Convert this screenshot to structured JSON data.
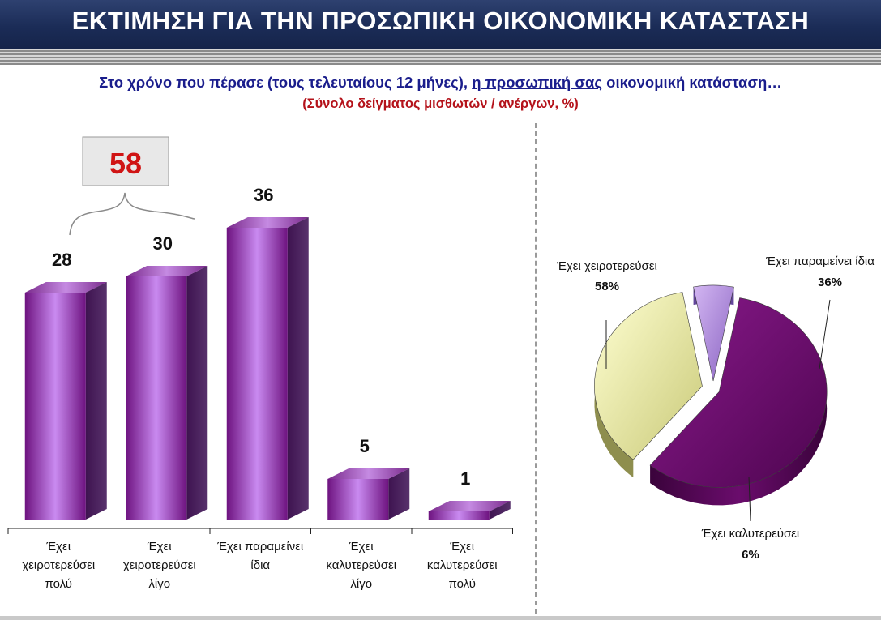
{
  "header": {
    "title": "ΕΚΤΙΜΗΣΗ ΓΙΑ ΤΗΝ ΠΡΟΣΩΠΙΚΗ ΟΙΚΟΝΟΜΙΚΗ ΚΑΤΑΣΤΑΣΗ"
  },
  "subtitle": {
    "part1": "Στο χρόνο που πέρασε (τους τελευταίους 12 μήνες), ",
    "part2": "η προσωπική σας",
    "part3": " οικονομική κατάσταση…",
    "line2": "(Σύνολο δείγματος μισθωτών / ανέργων, %)"
  },
  "colors": {
    "bar": "#8c2495",
    "pie_worse": "#6d0d6e",
    "pie_same": "#e3e39a",
    "pie_better": "#b08ad8",
    "sum_value": "#d01414"
  },
  "chart_data": [
    {
      "type": "bar",
      "categories": [
        "Έχει χειροτερεύσει πολύ",
        "Έχει χειροτερεύσει λίγο",
        "Έχει παραμείνει ίδια",
        "Έχει καλυτερεύσει λίγο",
        "Έχει καλυτερεύσει πολύ"
      ],
      "category_lines": [
        [
          "Έχει",
          "χειροτερεύσει",
          "πολύ"
        ],
        [
          "Έχει",
          "χειροτερεύσει",
          "λίγο"
        ],
        [
          "Έχει παραμείνει",
          "ίδια"
        ],
        [
          "Έχει",
          "καλυτερεύσει",
          "λίγο"
        ],
        [
          "Έχει",
          "καλυτερεύσει",
          "πολύ"
        ]
      ],
      "values": [
        28,
        30,
        36,
        5,
        1
      ],
      "value_labels": [
        "28",
        "30",
        "36",
        "5",
        "1"
      ],
      "annotation": {
        "label": "58",
        "spans": [
          0,
          1
        ]
      },
      "ylim": [
        0,
        36
      ]
    },
    {
      "type": "pie",
      "slices": [
        {
          "name": "Έχει χειροτερεύσει",
          "value": 58,
          "label": "58%"
        },
        {
          "name": "Έχει παραμείνει ίδια",
          "value": 36,
          "label": "36%"
        },
        {
          "name": "Έχει καλυτερεύσει",
          "value": 6,
          "label": "6%"
        }
      ]
    }
  ]
}
